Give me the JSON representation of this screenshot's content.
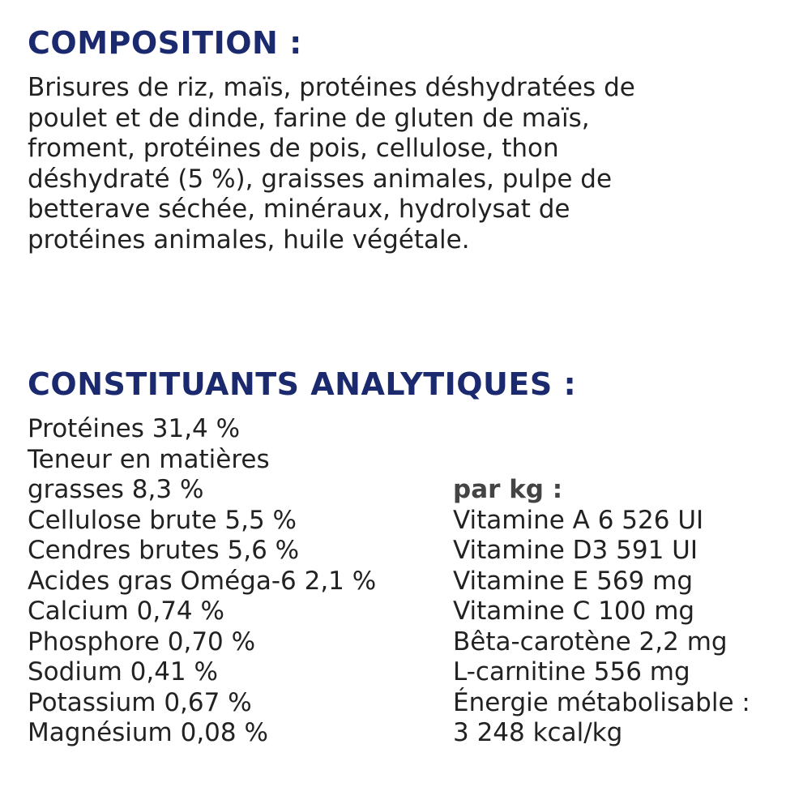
{
  "composition": {
    "heading": "COMPOSITION :",
    "lines": [
      "Brisures de riz, maïs, protéines déshydratées de",
      "poulet et de dinde, farine de gluten de maïs,",
      "froment, protéines de pois, cellulose, thon",
      "déshydraté (5 %), graisses animales, pulpe de",
      "betterave séchée, minéraux, hydrolysat de",
      "protéines animales, huile végétale."
    ]
  },
  "analytical": {
    "heading": "CONSTITUANTS ANALYTIQUES :",
    "left": [
      "Protéines 31,4 %",
      "Teneur en matières",
      "grasses 8,3 %",
      "Cellulose brute 5,5 %",
      "Cendres brutes 5,6 %",
      "Acides gras Oméga-6 2,1 %",
      "Calcium 0,74 %",
      "Phosphore 0,70 %",
      "Sodium 0,41 %",
      "Potassium 0,67 %",
      "Magnésium 0,08 %"
    ],
    "right_heading": "par kg :",
    "right": [
      "Vitamine A 6 526 UI",
      "Vitamine D3 591 UI",
      "Vitamine E 569 mg",
      "Vitamine C 100 mg",
      "Bêta-carotène 2,2 mg",
      "L-carnitine 556 mg",
      "Énergie métabolisable :",
      "3 248 kcal/kg"
    ]
  },
  "colors": {
    "heading": "#1b2a6e",
    "text": "#222222"
  }
}
